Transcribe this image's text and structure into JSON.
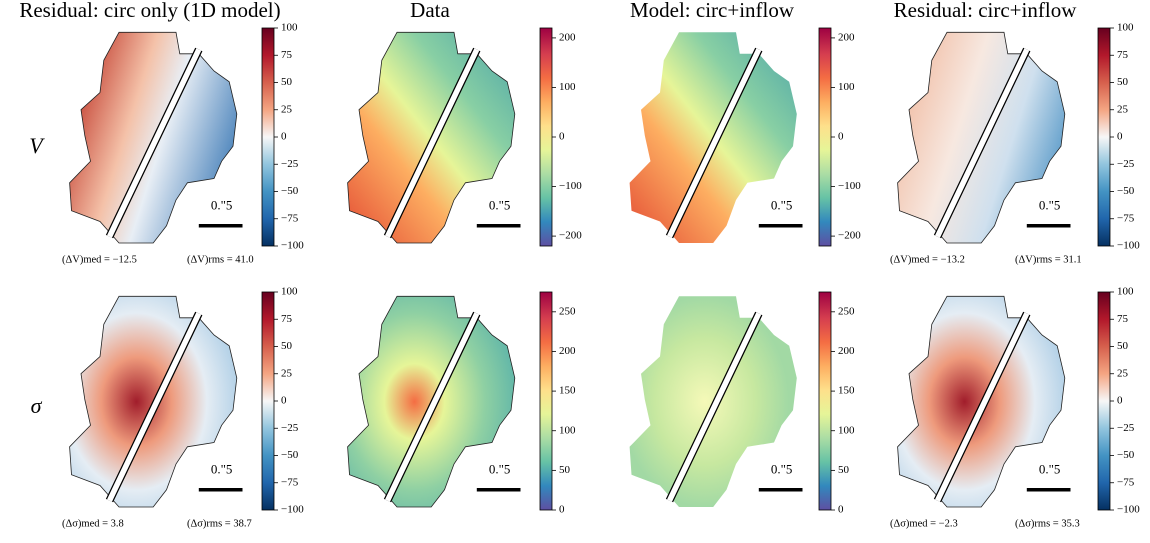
{
  "column_titles": [
    "Residual: circ only (1D model)",
    "Data",
    "Model: circ+inflow",
    "Residual: circ+inflow"
  ],
  "row_labels": [
    "V",
    "σ"
  ],
  "panels": [
    {
      "colorbar": {
        "lim": [
          -100,
          100
        ],
        "ticks": [
          100,
          75,
          50,
          25,
          0,
          {
            "value": -25,
            "label": "−25"
          },
          {
            "value": -50,
            "label": "−50"
          },
          {
            "value": -75,
            "label": "−75"
          },
          {
            "value": -100,
            "label": "−100"
          }
        ]
      },
      "scale_label": "0.\"5",
      "stats": [
        "(ΔV)med = −12.5",
        "(ΔV)rms = 41.0"
      ]
    },
    {
      "colorbar": {
        "lim": [
          -220,
          220
        ],
        "ticks": [
          200,
          100,
          0,
          {
            "value": -100,
            "label": "−100"
          },
          {
            "value": -200,
            "label": "−200"
          }
        ]
      },
      "scale_label": "0.\"5"
    },
    {
      "colorbar": {
        "lim": [
          -220,
          220
        ],
        "ticks": [
          200,
          100,
          0,
          {
            "value": -100,
            "label": "−100"
          },
          {
            "value": -200,
            "label": "−200"
          }
        ]
      },
      "scale_label": "0.\"5"
    },
    {
      "colorbar": {
        "lim": [
          -100,
          100
        ],
        "ticks": [
          100,
          75,
          50,
          25,
          0,
          {
            "value": -25,
            "label": "−25"
          },
          {
            "value": -50,
            "label": "−50"
          },
          {
            "value": -75,
            "label": "−75"
          },
          {
            "value": -100,
            "label": "−100"
          }
        ]
      },
      "scale_label": "0.\"5",
      "stats": [
        "(ΔV)med = −13.2",
        "(ΔV)rms = 31.1"
      ]
    },
    {
      "colorbar": {
        "lim": [
          -100,
          100
        ],
        "ticks": [
          100,
          75,
          50,
          25,
          0,
          {
            "value": -25,
            "label": "−25"
          },
          {
            "value": -50,
            "label": "−50"
          },
          {
            "value": -75,
            "label": "−75"
          },
          {
            "value": -100,
            "label": "−100"
          }
        ]
      },
      "scale_label": "0.\"5",
      "stats": [
        "(Δσ)med = 3.8",
        "(Δσ)rms = 38.7"
      ]
    },
    {
      "colorbar": {
        "lim": [
          0,
          275
        ],
        "ticks": [
          0,
          50,
          100,
          150,
          200,
          250
        ]
      },
      "scale_label": "0.\"5"
    },
    {
      "colorbar": {
        "lim": [
          0,
          275
        ],
        "ticks": [
          0,
          50,
          100,
          150,
          200,
          250
        ]
      },
      "scale_label": "0.\"5"
    },
    {
      "colorbar": {
        "lim": [
          -100,
          100
        ],
        "ticks": [
          100,
          75,
          50,
          25,
          0,
          {
            "value": -25,
            "label": "−25"
          },
          {
            "value": -50,
            "label": "−50"
          },
          {
            "value": -75,
            "label": "−75"
          },
          {
            "value": -100,
            "label": "−100"
          }
        ]
      },
      "scale_label": "0.\"5",
      "stats": [
        "(Δσ)med = −2.3",
        "(Δσ)rms = 35.3"
      ]
    }
  ]
}
